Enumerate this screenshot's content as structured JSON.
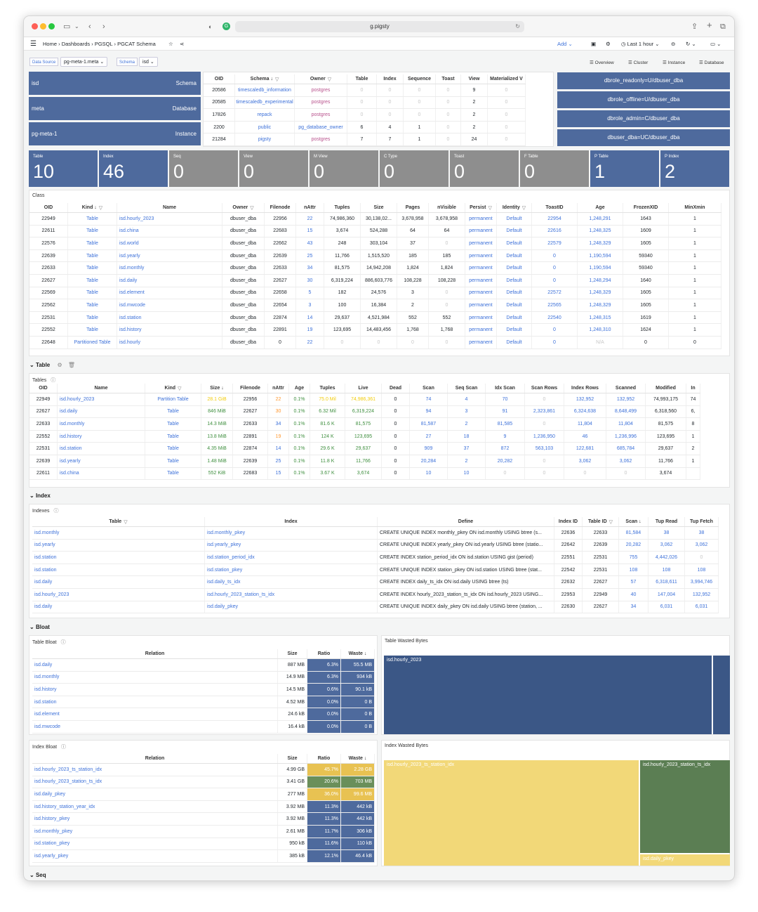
{
  "browser": {
    "url": "g.pigsty"
  },
  "nav": {
    "crumbs": [
      "Home",
      "Dashboards",
      "PGSQL",
      "PGCAT Schema"
    ],
    "add": "Add",
    "time": "Last 1 hour"
  },
  "vars": {
    "ds_label": "Data Source",
    "ds_value": "pg-meta-1.meta",
    "schema_label": "Schema",
    "schema_value": "isd",
    "links": [
      "Overview",
      "Cluster",
      "Instance",
      "Database"
    ]
  },
  "info": [
    {
      "value": "isd",
      "label": "Schema"
    },
    {
      "value": "meta",
      "label": "Database"
    },
    {
      "value": "pg-meta-1",
      "label": "Instance"
    }
  ],
  "schemas": {
    "headers": [
      "OID",
      "Schema ↓",
      "Owner",
      "Table",
      "Index",
      "Sequence",
      "Toast",
      "View",
      "Materialized V"
    ],
    "rows": [
      [
        "20586",
        "timescaledb_information",
        "postgres",
        "0",
        "0",
        "0",
        "0",
        "9",
        "0"
      ],
      [
        "20585",
        "timescaledb_experimental",
        "postgres",
        "0",
        "0",
        "0",
        "0",
        "2",
        "0"
      ],
      [
        "17826",
        "repack",
        "postgres",
        "0",
        "0",
        "0",
        "0",
        "2",
        "0"
      ],
      [
        "2200",
        "public",
        "pg_database_owner",
        "6",
        "4",
        "1",
        "0",
        "2",
        "0"
      ],
      [
        "21284",
        "pigsty",
        "postgres",
        "7",
        "7",
        "1",
        "0",
        "24",
        "0"
      ]
    ]
  },
  "roles": [
    "dbrole_readonly=U/dbuser_dba",
    "dbrole_offline=U/dbuser_dba",
    "dbrole_admin=C/dbuser_dba",
    "dbuser_dba=UC/dbuser_dba"
  ],
  "stats": [
    {
      "label": "Table",
      "value": "10",
      "color": "#4e6a9d"
    },
    {
      "label": "Index",
      "value": "46",
      "color": "#4e6a9d"
    },
    {
      "label": "Seq",
      "value": "0",
      "color": "#8e8e8e"
    },
    {
      "label": "View",
      "value": "0",
      "color": "#8e8e8e"
    },
    {
      "label": "M View",
      "value": "0",
      "color": "#8e8e8e"
    },
    {
      "label": "C Type",
      "value": "0",
      "color": "#8e8e8e"
    },
    {
      "label": "Toast",
      "value": "0",
      "color": "#8e8e8e"
    },
    {
      "label": "F Table",
      "value": "0",
      "color": "#8e8e8e"
    },
    {
      "label": "P Table",
      "value": "1",
      "color": "#4e6a9d"
    },
    {
      "label": "P Index",
      "value": "2",
      "color": "#4e6a9d"
    }
  ],
  "class": {
    "title": "Class",
    "headers": [
      "OID",
      "Kind ↓",
      "Name",
      "Owner",
      "Filenode",
      "nAttr",
      "Tuples",
      "Size",
      "Pages",
      "nVisible",
      "Persist",
      "Identity",
      "ToastID",
      "Age",
      "FrozenXID",
      "MinXmin"
    ],
    "rows": [
      [
        "22949",
        "Table",
        "isd.hourly_2023",
        "dbuser_dba",
        "22956",
        "22",
        "74,986,360",
        "30,138,02...",
        "3,678,958",
        "3,678,958",
        "permanent",
        "Default",
        "22954",
        "1,248,291",
        "1643",
        "1"
      ],
      [
        "22611",
        "Table",
        "isd.china",
        "dbuser_dba",
        "22683",
        "15",
        "3,674",
        "524,288",
        "64",
        "64",
        "permanent",
        "Default",
        "22616",
        "1,248,325",
        "1609",
        "1"
      ],
      [
        "22576",
        "Table",
        "isd.world",
        "dbuser_dba",
        "22662",
        "43",
        "248",
        "303,104",
        "37",
        "0",
        "permanent",
        "Default",
        "22579",
        "1,248,329",
        "1605",
        "1"
      ],
      [
        "22639",
        "Table",
        "isd.yearly",
        "dbuser_dba",
        "22639",
        "25",
        "11,766",
        "1,515,520",
        "185",
        "185",
        "permanent",
        "Default",
        "0",
        "1,190,594",
        "59340",
        "1"
      ],
      [
        "22633",
        "Table",
        "isd.monthly",
        "dbuser_dba",
        "22633",
        "34",
        "81,575",
        "14,942,208",
        "1,824",
        "1,824",
        "permanent",
        "Default",
        "0",
        "1,190,594",
        "59340",
        "1"
      ],
      [
        "22627",
        "Table",
        "isd.daily",
        "dbuser_dba",
        "22627",
        "30",
        "6,319,224",
        "886,603,776",
        "108,228",
        "108,228",
        "permanent",
        "Default",
        "0",
        "1,248,294",
        "1640",
        "1"
      ],
      [
        "22569",
        "Table",
        "isd.element",
        "dbuser_dba",
        "22658",
        "5",
        "182",
        "24,576",
        "3",
        "0",
        "permanent",
        "Default",
        "22572",
        "1,248,329",
        "1605",
        "1"
      ],
      [
        "22562",
        "Table",
        "isd.mwcode",
        "dbuser_dba",
        "22654",
        "3",
        "100",
        "16,384",
        "2",
        "0",
        "permanent",
        "Default",
        "22565",
        "1,248,329",
        "1605",
        "1"
      ],
      [
        "22531",
        "Table",
        "isd.station",
        "dbuser_dba",
        "22874",
        "14",
        "29,637",
        "4,521,984",
        "552",
        "552",
        "permanent",
        "Default",
        "22540",
        "1,248,315",
        "1619",
        "1"
      ],
      [
        "22552",
        "Table",
        "isd.history",
        "dbuser_dba",
        "22891",
        "19",
        "123,695",
        "14,483,456",
        "1,768",
        "1,768",
        "permanent",
        "Default",
        "0",
        "1,248,310",
        "1624",
        "1"
      ],
      [
        "22648",
        "Partitioned Table",
        "isd.hourly",
        "dbuser_dba",
        "0",
        "22",
        "0",
        "0",
        "0",
        "0",
        "permanent",
        "Default",
        "0",
        "N/A",
        "0",
        "0"
      ]
    ]
  },
  "sec_table": "Table",
  "tables": {
    "title": "Tables",
    "headers": [
      "OID",
      "Name",
      "Kind",
      "Size ↓",
      "Filenode",
      "nAttr",
      "Age",
      "Tuples",
      "Live",
      "Dead",
      "Scan",
      "Seq Scan",
      "Idx Scan",
      "Scan Rows",
      "Index Rows",
      "Scanned",
      "Modified",
      "In"
    ],
    "rows": [
      [
        "22949",
        "isd.hourly_2023",
        "Partition Table",
        "28.1 GiB",
        "22956",
        "22",
        "0.1%",
        "75.0 Mil",
        "74,986,361",
        "0",
        "74",
        "4",
        "70",
        "0",
        "132,952",
        "132,952",
        "74,993,175",
        "74"
      ],
      [
        "22627",
        "isd.daily",
        "Table",
        "846 MiB",
        "22627",
        "30",
        "0.1%",
        "6.32 Mil",
        "6,319,224",
        "0",
        "94",
        "3",
        "91",
        "2,323,861",
        "6,324,638",
        "8,648,499",
        "6,318,560",
        "6,"
      ],
      [
        "22633",
        "isd.monthly",
        "Table",
        "14.3 MiB",
        "22633",
        "34",
        "0.1%",
        "81.6 K",
        "81,575",
        "0",
        "81,587",
        "2",
        "81,585",
        "0",
        "11,804",
        "11,804",
        "81,575",
        "8"
      ],
      [
        "22552",
        "isd.history",
        "Table",
        "13.8 MiB",
        "22891",
        "19",
        "0.1%",
        "124 K",
        "123,695",
        "0",
        "27",
        "18",
        "9",
        "1,236,950",
        "46",
        "1,236,996",
        "123,695",
        "1"
      ],
      [
        "22531",
        "isd.station",
        "Table",
        "4.35 MiB",
        "22874",
        "14",
        "0.1%",
        "29.6 K",
        "29,637",
        "0",
        "909",
        "37",
        "872",
        "563,103",
        "122,681",
        "685,784",
        "29,637",
        "2"
      ],
      [
        "22639",
        "isd.yearly",
        "Table",
        "1.48 MiB",
        "22639",
        "25",
        "0.1%",
        "11.8 K",
        "11,766",
        "0",
        "20,284",
        "2",
        "20,282",
        "0",
        "3,062",
        "3,062",
        "11,766",
        "1"
      ],
      [
        "22611",
        "isd.china",
        "Table",
        "552 KiB",
        "22683",
        "15",
        "0.1%",
        "3.67 K",
        "3,674",
        "0",
        "10",
        "10",
        "0",
        "0",
        "0",
        "0",
        "3,674",
        ""
      ]
    ]
  },
  "sec_index": "Index",
  "indexes": {
    "title": "Indexes",
    "headers": [
      "Table",
      "Index",
      "Define",
      "Index ID",
      "Table ID",
      "Scan ↓",
      "Tup Read",
      "Tup Fetch"
    ],
    "rows": [
      [
        "isd.monthly",
        "isd.monthly_pkey",
        "CREATE UNIQUE INDEX monthly_pkey ON isd.monthly USING btree (s...",
        "22636",
        "22633",
        "81,584",
        "38",
        "38"
      ],
      [
        "isd.yearly",
        "isd.yearly_pkey",
        "CREATE UNIQUE INDEX yearly_pkey ON isd.yearly USING btree (statio...",
        "22642",
        "22639",
        "20,282",
        "3,062",
        "3,062"
      ],
      [
        "isd.station",
        "isd.station_period_idx",
        "CREATE INDEX station_period_idx ON isd.station USING gist (period)",
        "22551",
        "22531",
        "755",
        "4,442,026",
        "0"
      ],
      [
        "isd.station",
        "isd.station_pkey",
        "CREATE UNIQUE INDEX station_pkey ON isd.station USING btree (stat...",
        "22542",
        "22531",
        "108",
        "108",
        "108"
      ],
      [
        "isd.daily",
        "isd.daily_ts_idx",
        "CREATE INDEX daily_ts_idx ON isd.daily USING btree (ts)",
        "22632",
        "22627",
        "57",
        "6,318,611",
        "3,994,746"
      ],
      [
        "isd.hourly_2023",
        "isd.hourly_2023_station_ts_idx",
        "CREATE INDEX hourly_2023_station_ts_idx ON isd.hourly_2023 USING...",
        "22953",
        "22949",
        "40",
        "147,004",
        "132,952"
      ],
      [
        "isd.daily",
        "isd.daily_pkey",
        "CREATE UNIQUE INDEX daily_pkey ON isd.daily USING btree (station, ...",
        "22630",
        "22627",
        "34",
        "6,031",
        "6,031"
      ]
    ]
  },
  "sec_bloat": "Bloat",
  "table_bloat": {
    "title": "Table Bloat",
    "headers": [
      "Relation",
      "Size",
      "Ratio",
      "Waste ↓"
    ],
    "rows": [
      [
        "isd.daily",
        "887 MB",
        "6.3%",
        "55.5 MB"
      ],
      [
        "isd.monthly",
        "14.9 MB",
        "6.3%",
        "934 kB"
      ],
      [
        "isd.history",
        "14.5 MB",
        "0.6%",
        "90.1 kB"
      ],
      [
        "isd.station",
        "4.52 MB",
        "0.0%",
        "0 B"
      ],
      [
        "isd.element",
        "24.6 kB",
        "0.0%",
        "0 B"
      ],
      [
        "isd.mwcode",
        "16.4 kB",
        "0.0%",
        "0 B"
      ]
    ]
  },
  "table_wasted": {
    "title": "Table Wasted Bytes",
    "items": [
      {
        "label": "isd.hourly_2023",
        "color": "#3b5786"
      },
      {
        "label": "",
        "color": "#3b5786"
      }
    ]
  },
  "index_bloat": {
    "title": "Index Bloat",
    "headers": [
      "Relation",
      "Size",
      "Ratio",
      "Waste ↓"
    ],
    "rows": [
      [
        "isd.hourly_2023_ts_station_idx",
        "4.99 GB",
        "45.7%",
        "2.28 GB"
      ],
      [
        "isd.hourly_2023_station_ts_idx",
        "3.41 GB",
        "20.6%",
        "703 MB"
      ],
      [
        "isd.daily_pkey",
        "277 MB",
        "36.0%",
        "99.6 MB"
      ],
      [
        "isd.history_station_year_idx",
        "3.92 MB",
        "11.3%",
        "442 kB"
      ],
      [
        "isd.history_pkey",
        "3.92 MB",
        "11.3%",
        "442 kB"
      ],
      [
        "isd.monthly_pkey",
        "2.61 MB",
        "11.7%",
        "306 kB"
      ],
      [
        "isd.station_pkey",
        "950 kB",
        "11.6%",
        "110 kB"
      ],
      [
        "isd.yearly_pkey",
        "385 kB",
        "12.1%",
        "46.4 kB"
      ]
    ]
  },
  "index_wasted": {
    "title": "Index Wasted Bytes",
    "items": [
      {
        "label": "isd.hourly_2023_ts_station_idx",
        "color": "#f2d878"
      },
      {
        "label": "isd.hourly_2023_station_ts_idx",
        "color": "#5b7e53"
      },
      {
        "label": "isd.daily_pkey",
        "color": "#f2d878"
      }
    ]
  },
  "sec_seq": "Seq",
  "colors": {
    "blue": "#4e6a9d",
    "green": "#6a8f5a",
    "yellow": "#e8c252",
    "gray": "#8e8e8e"
  }
}
